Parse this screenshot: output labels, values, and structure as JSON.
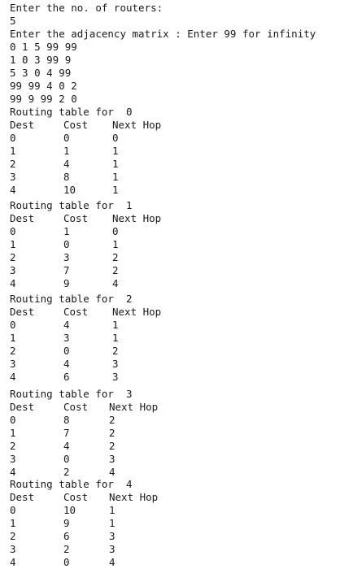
{
  "prompts": {
    "routers_prompt": "Enter the no. of routers:",
    "routers_value": "5",
    "matrix_prompt": "Enter the adjacency matrix : Enter 99 for infinity"
  },
  "matrix_rows": [
    "0 1 5 99 99",
    "1 0 3 99 9",
    "5 3 0 4 99",
    "99 99 4 0 2",
    "99 9 99 2 0"
  ],
  "tables": [
    {
      "title": "Routing table for  0",
      "headers": [
        "Dest",
        "Cost",
        "Next Hop"
      ],
      "rows": [
        [
          "0",
          "0",
          "0"
        ],
        [
          "1",
          "1",
          "1"
        ],
        [
          "2",
          "4",
          "1"
        ],
        [
          "3",
          "8",
          "1"
        ],
        [
          "4",
          "10",
          "1"
        ]
      ]
    },
    {
      "title": "Routing table for  1",
      "headers": [
        "Dest",
        "Cost",
        "Next Hop"
      ],
      "rows": [
        [
          "0",
          "1",
          "0"
        ],
        [
          "1",
          "0",
          "1"
        ],
        [
          "2",
          "3",
          "2"
        ],
        [
          "3",
          "7",
          "2"
        ],
        [
          "4",
          "9",
          "4"
        ]
      ]
    },
    {
      "title": "Routing table for  2",
      "headers": [
        "Dest",
        "Cost",
        "Next Hop"
      ],
      "rows": [
        [
          "0",
          "4",
          "1"
        ],
        [
          "1",
          "3",
          "1"
        ],
        [
          "2",
          "0",
          "2"
        ],
        [
          "3",
          "4",
          "3"
        ],
        [
          "4",
          "6",
          "3"
        ]
      ]
    },
    {
      "title": "Routing table for  3",
      "headers": [
        "Dest",
        "Cost",
        "Next Hop"
      ],
      "rows": [
        [
          "0",
          "8",
          "2"
        ],
        [
          "1",
          "7",
          "2"
        ],
        [
          "2",
          "4",
          "2"
        ],
        [
          "3",
          "0",
          "3"
        ],
        [
          "4",
          "2",
          "4"
        ]
      ]
    },
    {
      "title": "Routing table for  4",
      "headers": [
        "Dest",
        "Cost",
        "Next Hop"
      ],
      "rows": [
        [
          "0",
          "10",
          "1"
        ],
        [
          "1",
          "9",
          "1"
        ],
        [
          "2",
          "6",
          "3"
        ],
        [
          "3",
          "2",
          "3"
        ],
        [
          "4",
          "0",
          "4"
        ]
      ]
    }
  ]
}
